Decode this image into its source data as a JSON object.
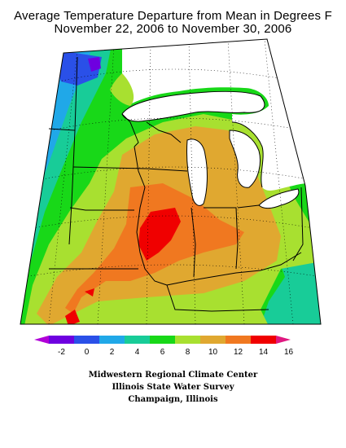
{
  "title": {
    "line1": "Average Temperature Departure from Mean in Degrees F",
    "line2": "November 22, 2006 to November 30, 2006"
  },
  "legend": {
    "ticks": [
      "-2",
      "0",
      "2",
      "4",
      "6",
      "8",
      "10",
      "12",
      "14",
      "16"
    ],
    "colors": [
      "#b000d8",
      "#6e00e0",
      "#2a50e8",
      "#20a8e8",
      "#18cc98",
      "#18d818",
      "#a8e030",
      "#e0a830",
      "#f07820",
      "#f00000",
      "#e01880"
    ]
  },
  "credits": {
    "line1": "Midwestern Regional Climate Center",
    "line2": "Illinois State Water Survey",
    "line3": "Champaign, Illinois"
  },
  "map_colors": {
    "water": "#ffffff",
    "border": "#000000",
    "grid": "#000000"
  }
}
